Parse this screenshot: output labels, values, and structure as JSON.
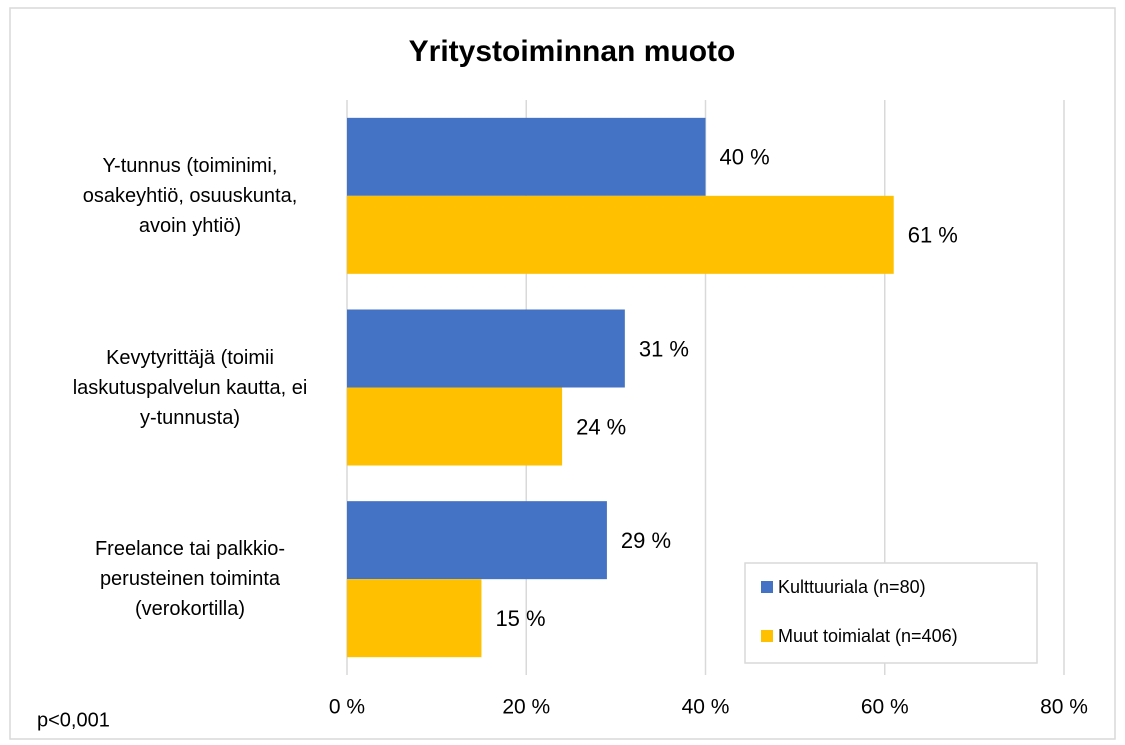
{
  "chart_data": {
    "type": "bar",
    "orientation": "horizontal",
    "title": "Yritystoiminnan muoto",
    "annotation": "p<0,001",
    "categories": [
      "Y-tunnus (toiminimi, osakeyhtiö, osuuskunta, avoin yhtiö)",
      "Kevytyrittäjä (toimii laskutuspalvelun kautta, ei y-tunnusta)",
      "Freelance tai palkkio-perusteinen toiminta (verokortilla)"
    ],
    "series": [
      {
        "name": "Kulttuuriala (n=80)",
        "color": "#4472c4",
        "values": [
          40,
          31,
          29
        ],
        "value_labels": [
          "40 %",
          "31 %",
          "29 %"
        ]
      },
      {
        "name": "Muut toimialat (n=406)",
        "color": "#ffc000",
        "values": [
          61,
          24,
          15
        ],
        "value_labels": [
          "61 %",
          "24 %",
          "15 %"
        ]
      }
    ],
    "xlim": [
      0,
      80
    ],
    "xticks": [
      {
        "value": 0,
        "label": "0 %"
      },
      {
        "value": 20,
        "label": "20 %"
      },
      {
        "value": 40,
        "label": "40 %"
      },
      {
        "value": 60,
        "label": "60 %"
      },
      {
        "value": 80,
        "label": "80 %"
      }
    ],
    "grid": true,
    "legend": "lower right"
  }
}
